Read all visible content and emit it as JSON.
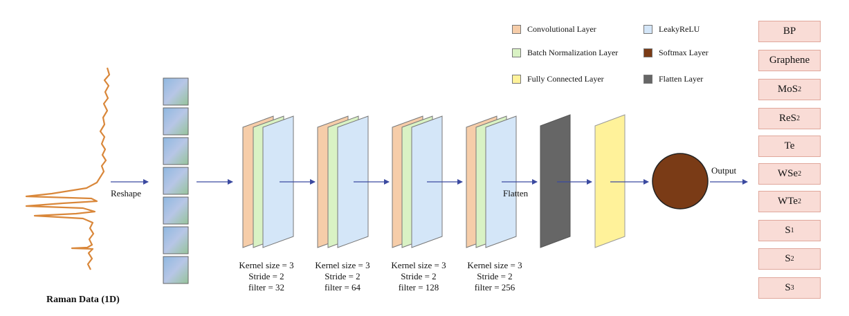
{
  "title": "Raman Data (1D)",
  "labels": {
    "reshape": "Reshape",
    "flatten": "Flatten",
    "output": "Output"
  },
  "legend": [
    {
      "label": "Convolutional Layer",
      "color": "#f6cda9"
    },
    {
      "label": "LeakyReLU",
      "color": "#d4e6f8"
    },
    {
      "label": "Batch Normalization Layer",
      "color": "#d9f2c4"
    },
    {
      "label": "Softmax Layer",
      "color": "#7a3b16"
    },
    {
      "label": "Fully Connected Layer",
      "color": "#fff29a"
    },
    {
      "label": "Flatten Layer",
      "color": "#666666"
    }
  ],
  "conv_blocks": [
    {
      "kernel": "Kernel size = 3",
      "stride": "Stride = 2",
      "filter": "filter = 32"
    },
    {
      "kernel": "Kernel size = 3",
      "stride": "Stride = 2",
      "filter": "filter = 64"
    },
    {
      "kernel": "Kernel size = 3",
      "stride": "Stride = 2",
      "filter": "filter = 128"
    },
    {
      "kernel": "Kernel size = 3",
      "stride": "Stride = 2",
      "filter": "filter = 256"
    }
  ],
  "classes": [
    {
      "base": "BP",
      "sub": ""
    },
    {
      "base": "Graphene",
      "sub": ""
    },
    {
      "base": "MoS",
      "sub": "2"
    },
    {
      "base": "ReS",
      "sub": "2"
    },
    {
      "base": "Te",
      "sub": ""
    },
    {
      "base": "WSe",
      "sub": "2"
    },
    {
      "base": "WTe",
      "sub": "2"
    },
    {
      "base": "S",
      "sub": "1"
    },
    {
      "base": "S",
      "sub": "2"
    },
    {
      "base": "S",
      "sub": "3"
    }
  ]
}
